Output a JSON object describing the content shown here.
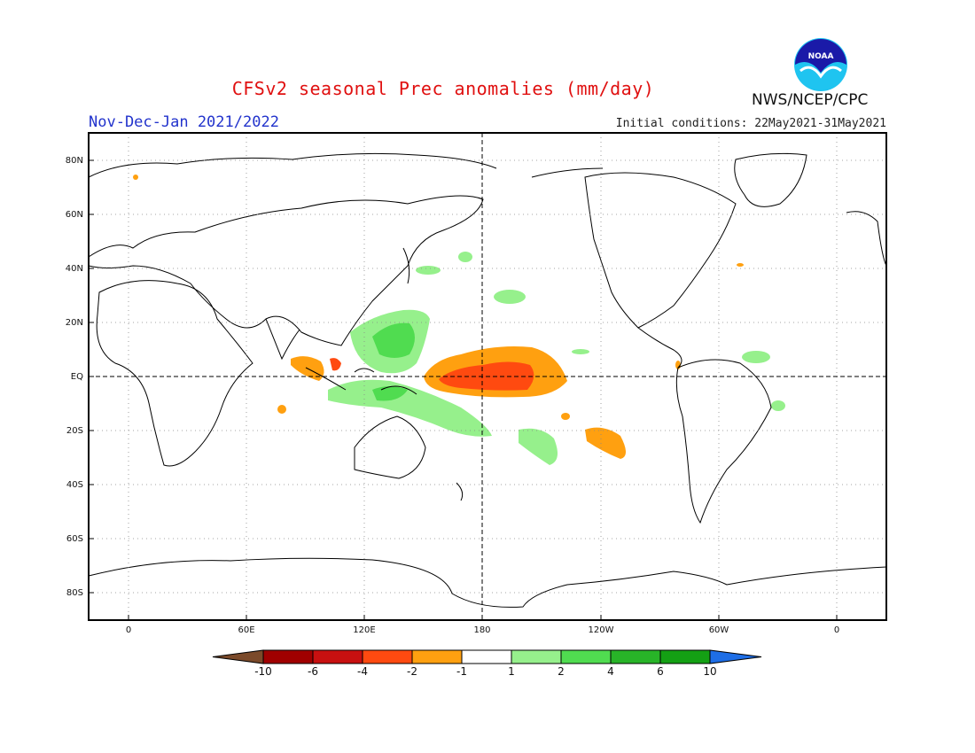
{
  "header": {
    "title": "CFSv2 seasonal Prec anomalies (mm/day)",
    "period": "Nov-Dec-Jan 2021/2022",
    "initial_conditions": "Initial conditions: 22May2021-31May2021",
    "agency": "NWS/NCEP/CPC",
    "logo_text": "NOAA"
  },
  "map": {
    "lat_labels": [
      "80N",
      "60N",
      "40N",
      "20N",
      "EQ",
      "20S",
      "40S",
      "60S",
      "80S"
    ],
    "lon_labels": [
      "0",
      "60E",
      "120E",
      "180",
      "120W",
      "60W",
      "0"
    ],
    "colorbar": {
      "labels": [
        "-10",
        "-6",
        "-4",
        "-2",
        "-1",
        "1",
        "2",
        "4",
        "6",
        "10"
      ],
      "colors": [
        "#7b4a2a",
        "#a00000",
        "#c81010",
        "#ff4a10",
        "#ffa010",
        "#ffffff",
        "#96f08c",
        "#50dc50",
        "#28b428",
        "#14a014",
        "#1e6ee6"
      ]
    },
    "anomalies": [
      {
        "region": "central-equatorial-pacific",
        "sign": "dry",
        "max": "-4"
      },
      {
        "region": "western-pacific-warm-pool",
        "sign": "wet",
        "max": "4"
      },
      {
        "region": "maritime-continent",
        "sign": "wet",
        "max": "4"
      },
      {
        "region": "eastern-indian-ocean",
        "sign": "dry",
        "max": "-4"
      },
      {
        "region": "south-pacific",
        "sign": "dry",
        "max": "-2"
      }
    ]
  }
}
